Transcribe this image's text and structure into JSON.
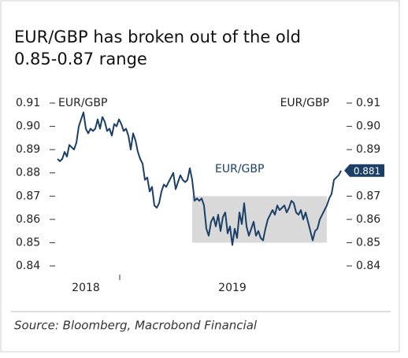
{
  "chart_data": {
    "type": "line",
    "title": [
      "EUR/GBP has broken out of the old",
      "0.85-0.87 range"
    ],
    "ylabel": "EUR/GBP",
    "y2label": "EUR/GBP",
    "source": "Source: Bloomberg, Macrobond Financial",
    "categories": [
      null,
      null,
      null,
      null,
      null,
      null,
      null,
      null,
      null,
      null,
      null,
      null,
      "2018",
      null,
      null,
      null,
      null,
      null,
      null,
      null,
      null,
      null,
      null,
      null,
      null,
      null,
      null,
      null,
      null,
      null,
      null,
      null,
      null,
      null,
      null,
      null,
      null,
      null,
      null,
      null,
      null,
      null,
      null,
      null,
      null,
      null,
      null,
      null,
      null,
      null,
      null,
      null,
      null,
      null,
      null,
      null,
      null,
      null,
      null,
      null,
      null,
      null,
      null,
      null,
      null,
      null,
      null,
      null,
      null,
      null,
      null,
      null,
      null,
      null,
      "2019",
      null,
      null,
      null,
      null,
      null,
      null,
      null,
      null,
      null,
      null,
      null,
      null,
      null,
      null,
      null,
      null,
      null,
      null,
      null,
      null,
      null,
      null,
      null,
      null,
      null,
      null,
      null,
      null,
      null,
      null,
      null,
      null,
      null,
      null,
      null,
      null,
      null,
      null,
      null,
      null,
      null,
      null,
      null,
      null,
      null,
      null
    ],
    "series": [
      {
        "name": "EUR/GBP",
        "color": "#1b3f66",
        "values": [
          0.886,
          0.885,
          0.886,
          0.889,
          0.887,
          0.892,
          0.891,
          0.89,
          0.893,
          0.9,
          0.903,
          0.906,
          0.899,
          0.897,
          0.899,
          0.898,
          0.899,
          0.903,
          0.899,
          0.904,
          0.902,
          0.898,
          0.899,
          0.896,
          0.901,
          0.9,
          0.903,
          0.901,
          0.898,
          0.899,
          0.896,
          0.89,
          0.897,
          0.894,
          0.889,
          0.886,
          0.884,
          0.877,
          0.878,
          0.872,
          0.874,
          0.866,
          0.865,
          0.867,
          0.872,
          0.875,
          0.874,
          0.876,
          0.878,
          0.88,
          0.873,
          0.876,
          0.879,
          0.877,
          0.876,
          0.877,
          0.882,
          0.877,
          0.868,
          0.869,
          0.868,
          0.869,
          0.866,
          0.856,
          0.853,
          0.859,
          0.861,
          0.857,
          0.862,
          0.855,
          0.861,
          0.863,
          0.854,
          0.857,
          0.849,
          0.856,
          0.852,
          0.863,
          0.858,
          0.867,
          0.857,
          0.853,
          0.856,
          0.859,
          0.853,
          0.855,
          0.852,
          0.851,
          0.856,
          0.86,
          0.862,
          0.864,
          0.862,
          0.866,
          0.864,
          0.865,
          0.866,
          0.863,
          0.865,
          0.868,
          0.867,
          0.863,
          0.862,
          0.864,
          0.86,
          0.863,
          0.859,
          0.855,
          0.851,
          0.855,
          0.856,
          0.86,
          0.862,
          0.864,
          0.866,
          0.869,
          0.871,
          0.877,
          0.878,
          0.879,
          0.881
        ]
      }
    ],
    "shaded_range": {
      "from": 57,
      "to": 114,
      "y": [
        0.85,
        0.87
      ]
    },
    "ylim": [
      0.84,
      0.91
    ],
    "yticks": [
      0.91,
      {
        "value": 0.9,
        "label": "0.90"
      },
      0.89,
      0.88,
      0.87,
      0.86,
      0.85,
      0.84
    ],
    "y2lim": [
      0.84,
      0.91
    ],
    "y2ticks": [
      0.91,
      {
        "value": 0.9,
        "label": "0.90"
      },
      0.89,
      0.88,
      0.87,
      0.86,
      0.85,
      0.84
    ],
    "grid": false
  }
}
